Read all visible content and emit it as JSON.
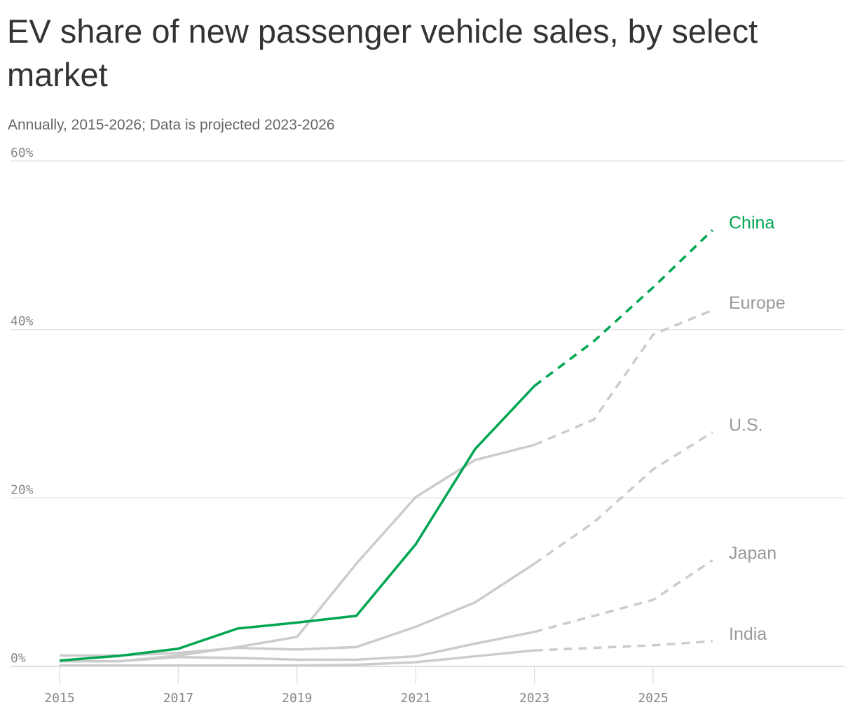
{
  "chart_data": {
    "type": "line",
    "title": "EV share of new passenger vehicle sales, by select market",
    "subtitle": "Annually, 2015-2026; Data is projected 2023-2026",
    "x": [
      2015,
      2016,
      2017,
      2018,
      2019,
      2020,
      2021,
      2022,
      2023,
      2024,
      2025,
      2026
    ],
    "projected_from": 2023,
    "ylim": [
      0,
      60
    ],
    "yticks": [
      0,
      20,
      40,
      60
    ],
    "ytick_labels": [
      "0%",
      "20%",
      "40%",
      "60%"
    ],
    "xticks": [
      2015,
      2017,
      2019,
      2021,
      2023,
      2025
    ],
    "xtick_labels": [
      "2015",
      "2017",
      "2019",
      "2021",
      "2023",
      "2025"
    ],
    "grid": true,
    "series": [
      {
        "name": "India",
        "color": "#cccccc",
        "values": [
          0.1,
          0.1,
          0.1,
          0.1,
          0.1,
          0.2,
          0.5,
          1.2,
          1.9,
          2.2,
          2.5,
          3.0
        ]
      },
      {
        "name": "Japan",
        "color": "#cccccc",
        "values": [
          0.6,
          0.6,
          1.1,
          1.0,
          0.8,
          0.8,
          1.2,
          2.7,
          4.1,
          6.0,
          7.9,
          12.6
        ]
      },
      {
        "name": "U.S.",
        "color": "#cccccc",
        "values": [
          1.3,
          1.3,
          1.6,
          2.2,
          2.0,
          2.3,
          4.7,
          7.6,
          12.2,
          17.1,
          23.4,
          27.8
        ]
      },
      {
        "name": "Europe",
        "color": "#cccccc",
        "values": [
          0.6,
          0.6,
          1.3,
          2.3,
          3.5,
          12.2,
          20.1,
          24.5,
          26.3,
          29.3,
          39.4,
          42.3
        ]
      },
      {
        "name": "China",
        "color": "#00a651",
        "values": [
          0.7,
          1.25,
          2.1,
          4.5,
          5.2,
          6.0,
          14.5,
          25.8,
          33.3,
          38.6,
          45.0,
          51.8
        ]
      }
    ],
    "label_colors": {
      "China": "#00a651",
      "other": "#999999"
    }
  }
}
